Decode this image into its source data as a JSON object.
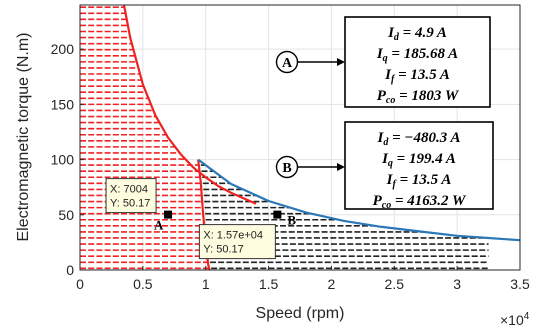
{
  "chart_data": {
    "type": "line",
    "title": "",
    "xlabel": "Speed (rpm)",
    "ylabel": "Electromagnetic torque (N.m)",
    "x_exponent_label": "×10",
    "x_exponent_power": "4",
    "xlim": [
      0,
      3.5
    ],
    "ylim": [
      0,
      240
    ],
    "xticks": [
      0,
      0.5,
      1,
      1.5,
      2,
      2.5,
      3,
      3.5
    ],
    "xtick_labels": [
      "0",
      "0.5",
      "1",
      "1.5",
      "2",
      "2.5",
      "3",
      "3.5"
    ],
    "yticks": [
      0,
      50,
      100,
      150,
      200
    ],
    "ytick_labels": [
      "0",
      "50",
      "100",
      "150",
      "200"
    ],
    "grid": true,
    "colors": {
      "red": "#ee2222",
      "blue": "#2a78b8",
      "black_hatch": "#222222",
      "callout_fill": "#ffffff",
      "tooltip_fill": "#fffde0"
    },
    "series": [
      {
        "color": "red",
        "x": [
          0.35,
          0.4,
          0.5,
          0.6,
          0.7,
          0.8,
          0.9,
          1.0,
          1.1,
          1.2,
          1.3,
          1.4
        ],
        "y": [
          240,
          210,
          168,
          140,
          120,
          105,
          93,
          84,
          76,
          70,
          65,
          60
        ]
      },
      {
        "color": "red",
        "x": [
          0.94,
          0.96,
          0.98,
          1.0,
          1.02,
          1.03
        ],
        "y": [
          100,
          80,
          50,
          25,
          5,
          0
        ]
      },
      {
        "color": "blue",
        "x": [
          0.94,
          1.2,
          1.5,
          1.8,
          2.1,
          2.4,
          2.7,
          3.0,
          3.25,
          3.5
        ],
        "y": [
          100,
          78,
          62.5,
          52,
          44.5,
          39,
          35,
          31,
          29,
          27
        ]
      }
    ],
    "points": [
      {
        "label": "A",
        "x": 0.7004,
        "y": 50.17,
        "tip_x": "X: 7004",
        "tip_y": "Y: 50.17"
      },
      {
        "label": "B",
        "x": 1.57,
        "y": 50.17,
        "tip_x": "X: 1.57e+04",
        "tip_y": "Y: 50.17"
      }
    ],
    "callouts": [
      {
        "letter": "A",
        "lines": [
          {
            "sym": "I",
            "sub": "d",
            "val": " = 4.9 A"
          },
          {
            "sym": "I",
            "sub": "q",
            "val": " = 185.68 A"
          },
          {
            "sym": "I",
            "sub": "f",
            "val": " = 13.5 A"
          },
          {
            "sym": "P",
            "sub": "co",
            "val": " = 1803 W"
          }
        ]
      },
      {
        "letter": "B",
        "lines": [
          {
            "sym": "I",
            "sub": "d",
            "val": " = −480.3 A"
          },
          {
            "sym": "I",
            "sub": "q",
            "val": " = 199.4 A"
          },
          {
            "sym": "I",
            "sub": "f",
            "val": " = 13.5 A"
          },
          {
            "sym": "P",
            "sub": "co",
            "val": " = 4163.2 W"
          }
        ]
      }
    ]
  }
}
